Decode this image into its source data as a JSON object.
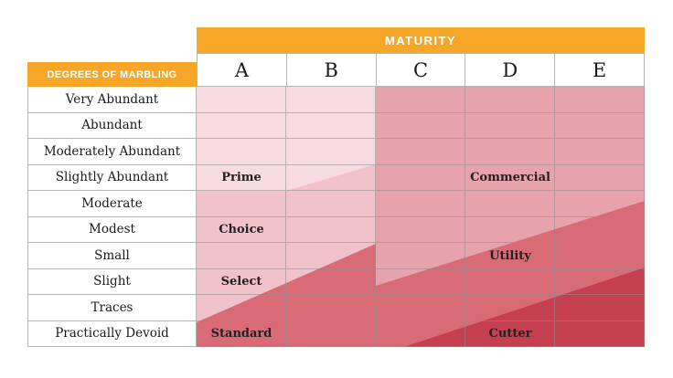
{
  "maturity_banner": "MATURITY",
  "marbling_header": "DEGREES OF MARBLING",
  "columns": [
    "A",
    "B",
    "C",
    "D",
    "E"
  ],
  "rows": [
    "Very Abundant",
    "Abundant",
    "Moderately Abundant",
    "Slightly Abundant",
    "Moderate",
    "Modest",
    "Small",
    "Slight",
    "Traces",
    "Practically Devoid"
  ],
  "grades": [
    {
      "label": "Prime",
      "row": 3,
      "col": 0
    },
    {
      "label": "Commercial",
      "row": 3,
      "col": 3
    },
    {
      "label": "Choice",
      "row": 5,
      "col": 0
    },
    {
      "label": "Utility",
      "row": 6,
      "col": 3
    },
    {
      "label": "Select",
      "row": 7,
      "col": 0
    },
    {
      "label": "Standard",
      "row": 9,
      "col": 0
    },
    {
      "label": "Cutter",
      "row": 9,
      "col": 3
    }
  ],
  "colors": {
    "accent_orange": "#F7A728",
    "shade_lightest": "#F7DBE0",
    "shade_light": "#F1C2C9",
    "shade_medium": "#E7A3AB",
    "shade_dark": "#D96B77",
    "shade_darkest": "#C43F4F",
    "grid_line": "#B5B5B5",
    "header_text": "#FFFFFF",
    "cell_text": "#1A1A1A"
  },
  "chart_data": {
    "type": "table",
    "title": "MATURITY",
    "xlabel": "MATURITY",
    "ylabel": "DEGREES OF MARBLING",
    "x_categories": [
      "A",
      "B",
      "C",
      "D",
      "E"
    ],
    "y_categories": [
      "Very Abundant",
      "Abundant",
      "Moderately Abundant",
      "Slightly Abundant",
      "Moderate",
      "Modest",
      "Small",
      "Slight",
      "Traces",
      "Practically Devoid"
    ],
    "annotations": [
      {
        "label": "Prime",
        "x": "A",
        "y": "Slightly Abundant"
      },
      {
        "label": "Commercial",
        "x": "D",
        "y": "Slightly Abundant"
      },
      {
        "label": "Choice",
        "x": "A",
        "y": "Modest"
      },
      {
        "label": "Utility",
        "x": "D",
        "y": "Small"
      },
      {
        "label": "Select",
        "x": "A",
        "y": "Slight"
      },
      {
        "label": "Standard",
        "x": "A",
        "y": "Practically Devoid"
      },
      {
        "label": "Cutter",
        "x": "D",
        "y": "Practically Devoid"
      }
    ],
    "color_scale": [
      "#F7DBE0",
      "#F1C2C9",
      "#E7A3AB",
      "#D96B77",
      "#C43F4F"
    ],
    "legend": "none",
    "grid": true
  }
}
